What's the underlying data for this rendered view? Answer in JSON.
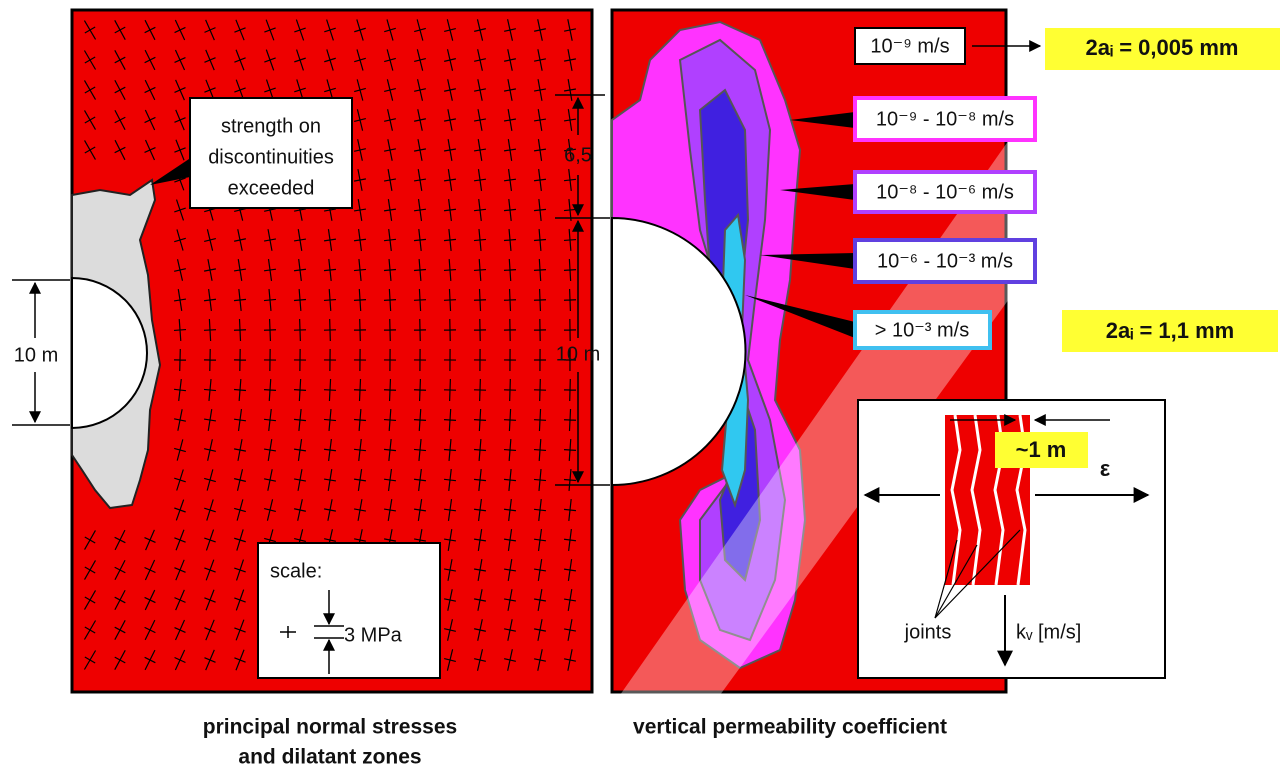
{
  "left_panel": {
    "callout": [
      "strength on",
      "discontinuities",
      "exceeded"
    ],
    "dimension": "10 m",
    "scale": {
      "title": "scale:",
      "value": "3 MPa"
    },
    "caption": [
      "principal normal stresses",
      "and dilatant zones"
    ]
  },
  "right_panel": {
    "permeability_labels": [
      "10⁻⁹ m/s",
      "10⁻⁹ - 10⁻⁸ m/s",
      "10⁻⁸ - 10⁻⁶ m/s",
      "10⁻⁶ - 10⁻³ m/s",
      "> 10⁻³ m/s"
    ],
    "aperture_labels": [
      "2aᵢ = 0,005 mm",
      "2aᵢ = 1,1 mm"
    ],
    "dimensions": [
      "6,5",
      "10 m"
    ],
    "inset": {
      "spacing": "~1 m",
      "strain": "ε",
      "joints": "joints",
      "flow": "kᵥ [m/s]"
    },
    "caption": "vertical permeability coefficient"
  }
}
